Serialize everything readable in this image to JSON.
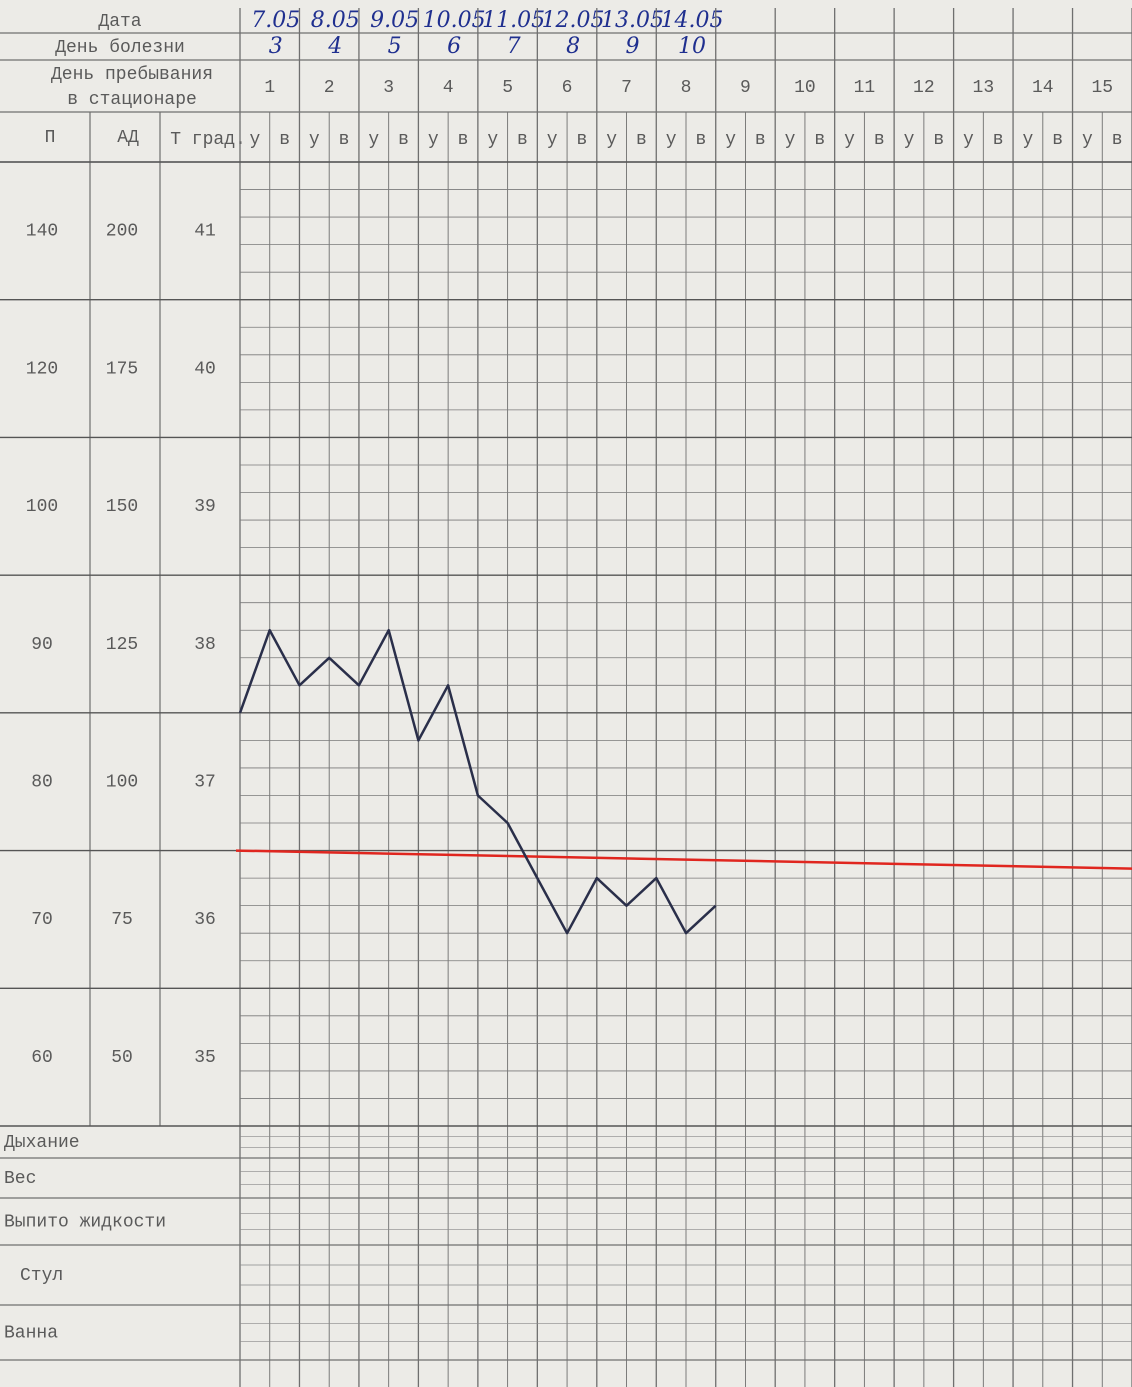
{
  "sheet": {
    "row_labels": {
      "date": "Дата",
      "illness_day": "День болезни",
      "stay_day": [
        "День пребывания",
        "в стационаре"
      ]
    },
    "column_headers": [
      "П",
      "АД",
      "Т град."
    ],
    "pulse_scale": [
      60,
      70,
      80,
      90,
      100,
      120,
      140
    ],
    "bp_scale": [
      50,
      75,
      100,
      125,
      150,
      175,
      200
    ],
    "dates": [
      "7.05",
      "8.05",
      "9.05",
      "10.05",
      "11.05",
      "12.05",
      "13.05",
      "14.05"
    ],
    "illness_days": [
      "3",
      "4",
      "5",
      "6",
      "7",
      "8",
      "9",
      "10"
    ],
    "stay_days": [
      "1",
      "2",
      "3",
      "4",
      "5",
      "6",
      "7",
      "8",
      "9",
      "10",
      "11",
      "12",
      "13",
      "14",
      "15"
    ],
    "bottom_rows": [
      "Дыхание",
      "Вес",
      "Выпито жидкости",
      "Стул",
      "Ванна"
    ]
  },
  "chart_data": {
    "type": "line",
    "categories": [
      "у",
      "в",
      "у",
      "в",
      "у",
      "в",
      "у",
      "в",
      "у",
      "в",
      "у",
      "в",
      "у",
      "в",
      "у",
      "в",
      "у",
      "в",
      "у",
      "в",
      "у",
      "в",
      "у",
      "в",
      "у",
      "в",
      "у",
      "в",
      "у",
      "в"
    ],
    "values": [
      38.0,
      38.6,
      38.2,
      38.4,
      38.2,
      38.6,
      37.8,
      38.2,
      37.4,
      37.2,
      36.8,
      36.4,
      36.8,
      36.6,
      36.8,
      36.4,
      36.6,
      null,
      null,
      null,
      null,
      null,
      null,
      null,
      null,
      null,
      null,
      null,
      null,
      null
    ],
    "color": "#2a2f4a",
    "ylim": [
      35,
      42
    ],
    "yticks": [
      35,
      36,
      37,
      38,
      39,
      40,
      41
    ],
    "grid": true,
    "reference_line": {
      "value": 37,
      "color": "#e0261f"
    }
  }
}
